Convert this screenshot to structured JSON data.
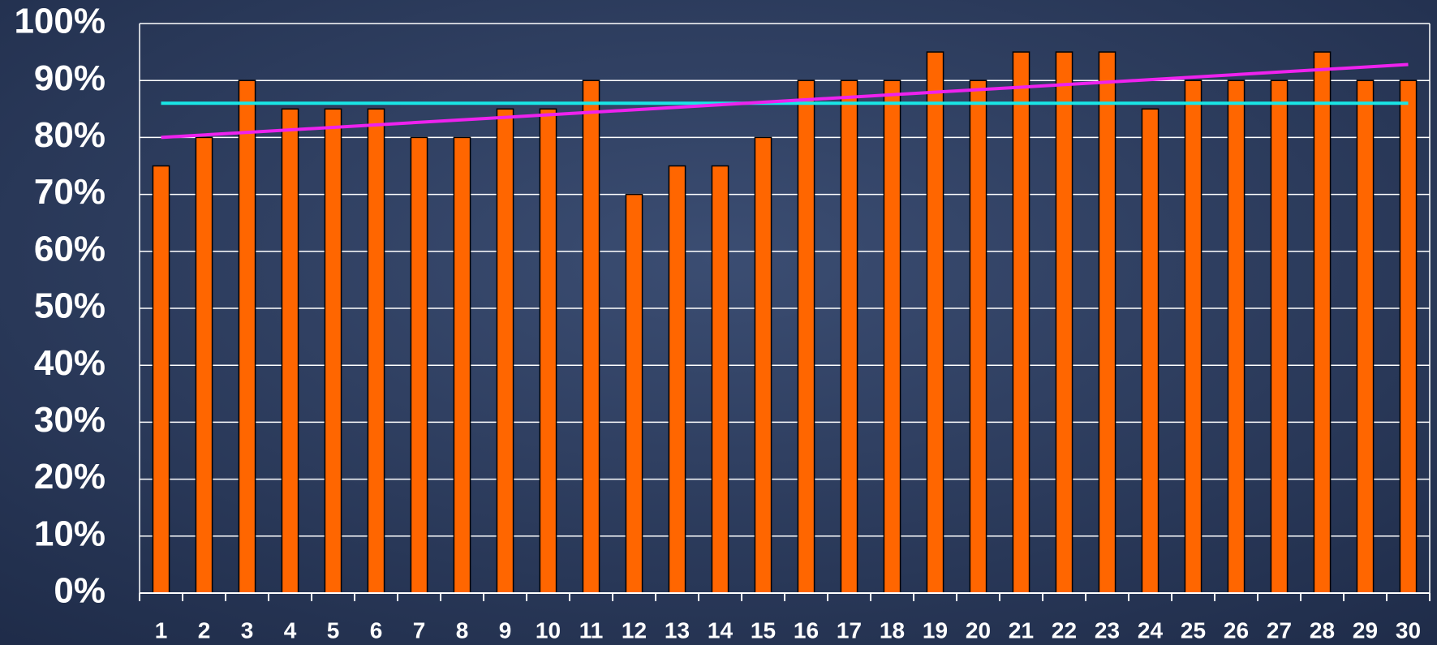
{
  "chart_data": {
    "type": "bar",
    "categories": [
      "1",
      "2",
      "3",
      "4",
      "5",
      "6",
      "7",
      "8",
      "9",
      "10",
      "11",
      "12",
      "13",
      "14",
      "15",
      "16",
      "17",
      "18",
      "19",
      "20",
      "21",
      "22",
      "23",
      "24",
      "25",
      "26",
      "27",
      "28",
      "29",
      "30"
    ],
    "values": [
      75,
      80,
      90,
      85,
      85,
      85,
      80,
      80,
      85,
      85,
      90,
      70,
      75,
      75,
      80,
      90,
      90,
      90,
      95,
      90,
      95,
      95,
      95,
      85,
      90,
      90,
      90,
      95,
      90,
      90
    ],
    "color": "#ff6600",
    "ylim": [
      0,
      100
    ],
    "yticks": [
      {
        "value": 0,
        "label": "0%"
      },
      {
        "value": 10,
        "label": "10%"
      },
      {
        "value": 20,
        "label": "20%"
      },
      {
        "value": 30,
        "label": "30%"
      },
      {
        "value": 40,
        "label": "40%"
      },
      {
        "value": 50,
        "label": "50%"
      },
      {
        "value": 60,
        "label": "60%"
      },
      {
        "value": 70,
        "label": "70%"
      },
      {
        "value": 80,
        "label": "80%"
      },
      {
        "value": 90,
        "label": "90%"
      },
      {
        "value": 100,
        "label": "100%"
      }
    ],
    "grid": true,
    "overlays": [
      {
        "type": "line",
        "color": "#19e6e6",
        "x": [
          "1",
          "30"
        ],
        "values": [
          86,
          86
        ]
      },
      {
        "type": "line",
        "color": "#ee22ee",
        "x": [
          "1",
          "30"
        ],
        "values": [
          80,
          92.8
        ]
      }
    ]
  }
}
